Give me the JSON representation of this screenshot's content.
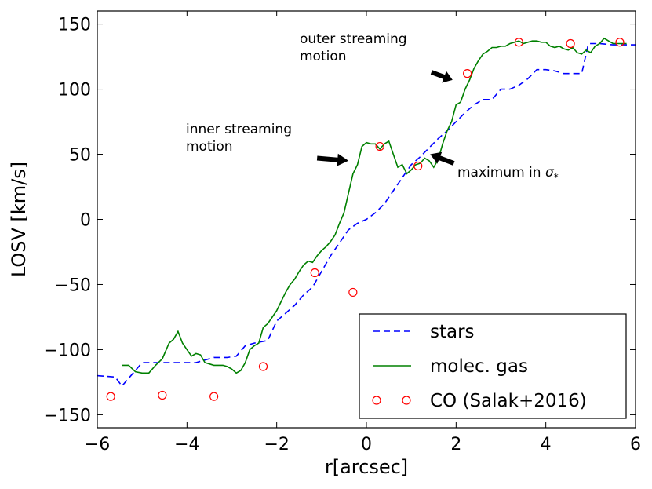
{
  "chart_data": {
    "type": "line",
    "xlabel": "r[arcsec]",
    "ylabel": "LOSV [km/s]",
    "xlim": [
      -6,
      6
    ],
    "ylim": [
      -160,
      160
    ],
    "xticks": [
      -6,
      -4,
      -2,
      0,
      2,
      4,
      6
    ],
    "yticks": [
      -150,
      -100,
      -50,
      0,
      50,
      100,
      150
    ],
    "grid": false,
    "legend_position": "lower-right",
    "series": [
      {
        "name": "stars",
        "style": "dashed",
        "color": "#0000ff",
        "x": [
          -6.0,
          -5.6,
          -5.45,
          -5.2,
          -5.0,
          -4.8,
          -4.6,
          -4.2,
          -3.8,
          -3.4,
          -3.1,
          -2.9,
          -2.7,
          -2.5,
          -2.2,
          -2.0,
          -1.8,
          -1.6,
          -1.4,
          -1.2,
          -1.0,
          -0.8,
          -0.6,
          -0.4,
          -0.2,
          0.0,
          0.2,
          0.4,
          0.6,
          0.8,
          1.0,
          1.2,
          1.4,
          1.6,
          1.8,
          2.0,
          2.2,
          2.4,
          2.6,
          2.8,
          3.0,
          3.2,
          3.4,
          3.6,
          3.8,
          4.0,
          4.2,
          4.4,
          4.6,
          4.8,
          4.95,
          5.2,
          5.5,
          6.0
        ],
        "y": [
          -120,
          -121,
          -128,
          -118,
          -110,
          -110,
          -110,
          -110,
          -110,
          -106,
          -106,
          -105,
          -97,
          -95,
          -93,
          -78,
          -72,
          -66,
          -58,
          -52,
          -40,
          -28,
          -18,
          -8,
          -3,
          0,
          5,
          12,
          22,
          32,
          42,
          48,
          55,
          62,
          68,
          75,
          82,
          88,
          92,
          92,
          100,
          100,
          103,
          108,
          115,
          115,
          114,
          112,
          112,
          112,
          135,
          135,
          134,
          134
        ]
      },
      {
        "name": "molec. gas",
        "style": "solid",
        "color": "#008000",
        "x": [
          -5.45,
          -5.3,
          -5.15,
          -5.0,
          -4.85,
          -4.7,
          -4.55,
          -4.4,
          -4.3,
          -4.2,
          -4.1,
          -4.0,
          -3.9,
          -3.8,
          -3.7,
          -3.6,
          -3.5,
          -3.4,
          -3.3,
          -3.2,
          -3.1,
          -3.0,
          -2.9,
          -2.8,
          -2.7,
          -2.6,
          -2.5,
          -2.4,
          -2.3,
          -2.2,
          -2.1,
          -2.0,
          -1.9,
          -1.8,
          -1.7,
          -1.6,
          -1.5,
          -1.4,
          -1.3,
          -1.2,
          -1.1,
          -1.0,
          -0.9,
          -0.8,
          -0.7,
          -0.6,
          -0.5,
          -0.4,
          -0.3,
          -0.2,
          -0.1,
          0.0,
          0.1,
          0.2,
          0.3,
          0.4,
          0.5,
          0.6,
          0.7,
          0.8,
          0.9,
          1.0,
          1.1,
          1.2,
          1.3,
          1.4,
          1.5,
          1.6,
          1.7,
          1.8,
          1.9,
          2.0,
          2.1,
          2.2,
          2.3,
          2.4,
          2.5,
          2.6,
          2.7,
          2.8,
          2.9,
          3.0,
          3.1,
          3.2,
          3.3,
          3.4,
          3.5,
          3.6,
          3.7,
          3.8,
          3.9,
          4.0,
          4.1,
          4.2,
          4.3,
          4.4,
          4.5,
          4.6,
          4.7,
          4.8,
          4.9,
          5.0,
          5.1,
          5.2,
          5.3,
          5.4,
          5.5,
          5.6,
          5.8
        ],
        "y": [
          -112,
          -112,
          -117,
          -118,
          -118,
          -112,
          -107,
          -95,
          -92,
          -86,
          -95,
          -100,
          -105,
          -103,
          -104,
          -110,
          -111,
          -112,
          -112,
          -112,
          -113,
          -115,
          -118,
          -116,
          -110,
          -100,
          -97,
          -95,
          -83,
          -80,
          -75,
          -70,
          -63,
          -56,
          -50,
          -46,
          -40,
          -35,
          -32,
          -33,
          -28,
          -24,
          -21,
          -17,
          -12,
          -3,
          5,
          20,
          35,
          42,
          56,
          59,
          58,
          58,
          54,
          58,
          60,
          50,
          40,
          42,
          35,
          38,
          42,
          43,
          47,
          45,
          40,
          46,
          58,
          68,
          75,
          88,
          90,
          100,
          107,
          116,
          122,
          127,
          129,
          132,
          132,
          133,
          133,
          135,
          136,
          137,
          135,
          136,
          137,
          137,
          136,
          136,
          133,
          132,
          133,
          131,
          130,
          132,
          128,
          127,
          130,
          128,
          133,
          135,
          139,
          137,
          135,
          135,
          135
        ]
      },
      {
        "name": "CO (Salak+2016)",
        "style": "open-circle",
        "color": "#ff0000",
        "x": [
          -5.7,
          -4.55,
          -3.4,
          -2.3,
          -1.15,
          -0.3,
          0.3,
          1.15,
          2.25,
          3.4,
          4.55,
          5.65
        ],
        "y": [
          -136,
          -135,
          -136,
          -113,
          -41,
          -56,
          56,
          41,
          112,
          136,
          135,
          136
        ]
      }
    ],
    "annotations": [
      {
        "text": "outer streaming\nmotion",
        "tail": [
          1.45,
          113
        ],
        "head": [
          1.92,
          107
        ]
      },
      {
        "text": "inner streaming\nmotion",
        "tail": [
          -1.1,
          47
        ],
        "head": [
          -0.4,
          45
        ]
      },
      {
        "text": "maximum in σ*",
        "tail": [
          1.95,
          43
        ],
        "head": [
          1.42,
          50
        ]
      }
    ]
  }
}
